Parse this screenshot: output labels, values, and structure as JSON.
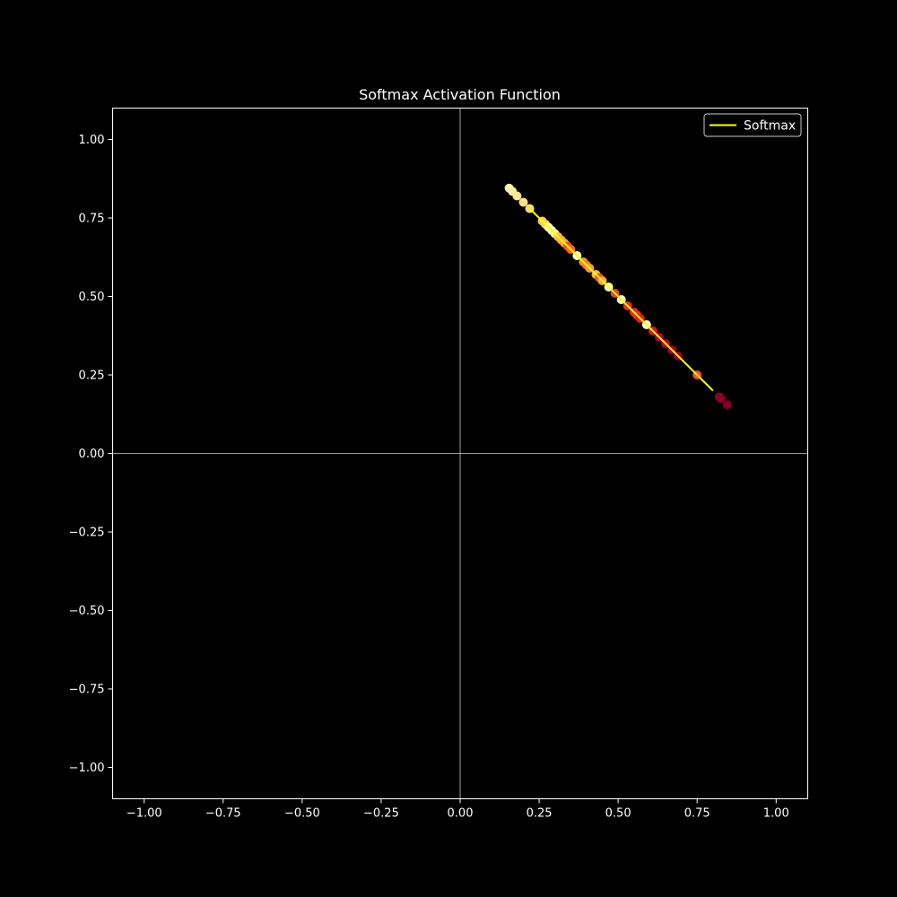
{
  "chart_data": {
    "type": "scatter",
    "title": "Softmax Activation Function",
    "xlabel": "",
    "ylabel": "",
    "xlim": [
      -1.1,
      1.1
    ],
    "ylim": [
      -1.1,
      1.1
    ],
    "x_ticks": [
      -1.0,
      -0.75,
      -0.5,
      -0.25,
      0.0,
      0.25,
      0.5,
      0.75,
      1.0
    ],
    "x_tick_labels": [
      "−1.00",
      "−0.75",
      "−0.50",
      "−0.25",
      "0.00",
      "0.25",
      "0.50",
      "0.75",
      "1.00"
    ],
    "y_ticks": [
      1.0,
      0.75,
      0.5,
      0.25,
      0.0,
      -0.25,
      -0.5,
      -0.75,
      -1.0
    ],
    "y_tick_labels": [
      "1.00",
      "0.75",
      "0.50",
      "0.25",
      "0.00",
      "−0.25",
      "−0.50",
      "−0.75",
      "−1.00"
    ],
    "grid": false,
    "reference_lines": {
      "x": 0,
      "y": 0,
      "color": "#cccccc"
    },
    "legend": {
      "location": "top-right",
      "entries": [
        {
          "label": "Softmax",
          "color": "#ffff00"
        }
      ]
    },
    "colormap": "YlOrRd",
    "line": {
      "name": "Softmax",
      "color": "#ffff00",
      "x": [
        0.22,
        0.8
      ],
      "y": [
        0.78,
        0.2
      ]
    },
    "points": [
      {
        "x": 0.155,
        "y": 0.845,
        "c": 0.05
      },
      {
        "x": 0.165,
        "y": 0.835,
        "c": 0.07
      },
      {
        "x": 0.18,
        "y": 0.82,
        "c": 0.1
      },
      {
        "x": 0.2,
        "y": 0.8,
        "c": 0.12
      },
      {
        "x": 0.22,
        "y": 0.78,
        "c": 0.15
      },
      {
        "x": 0.26,
        "y": 0.74,
        "c": 0.2
      },
      {
        "x": 0.27,
        "y": 0.73,
        "c": 0.18
      },
      {
        "x": 0.28,
        "y": 0.72,
        "c": 0.0
      },
      {
        "x": 0.29,
        "y": 0.71,
        "c": 0.02
      },
      {
        "x": 0.3,
        "y": 0.7,
        "c": 0.05
      },
      {
        "x": 0.31,
        "y": 0.69,
        "c": 0.25
      },
      {
        "x": 0.32,
        "y": 0.68,
        "c": 0.3
      },
      {
        "x": 0.33,
        "y": 0.67,
        "c": 0.35
      },
      {
        "x": 0.34,
        "y": 0.66,
        "c": 0.62
      },
      {
        "x": 0.35,
        "y": 0.65,
        "c": 0.55
      },
      {
        "x": 0.37,
        "y": 0.63,
        "c": 0.0
      },
      {
        "x": 0.39,
        "y": 0.61,
        "c": 0.45
      },
      {
        "x": 0.4,
        "y": 0.6,
        "c": 0.5
      },
      {
        "x": 0.41,
        "y": 0.59,
        "c": 0.4
      },
      {
        "x": 0.43,
        "y": 0.57,
        "c": 0.28
      },
      {
        "x": 0.44,
        "y": 0.56,
        "c": 0.6
      },
      {
        "x": 0.45,
        "y": 0.55,
        "c": 0.35
      },
      {
        "x": 0.47,
        "y": 0.53,
        "c": 0.02
      },
      {
        "x": 0.49,
        "y": 0.51,
        "c": 0.65
      },
      {
        "x": 0.51,
        "y": 0.49,
        "c": 0.02
      },
      {
        "x": 0.53,
        "y": 0.47,
        "c": 0.7
      },
      {
        "x": 0.55,
        "y": 0.45,
        "c": 0.72
      },
      {
        "x": 0.56,
        "y": 0.44,
        "c": 0.68
      },
      {
        "x": 0.57,
        "y": 0.43,
        "c": 0.75
      },
      {
        "x": 0.59,
        "y": 0.41,
        "c": 0.0
      },
      {
        "x": 0.61,
        "y": 0.39,
        "c": 0.78
      },
      {
        "x": 0.63,
        "y": 0.37,
        "c": 0.9
      },
      {
        "x": 0.65,
        "y": 0.35,
        "c": 0.88
      },
      {
        "x": 0.67,
        "y": 0.33,
        "c": 0.92
      },
      {
        "x": 0.69,
        "y": 0.31,
        "c": 0.95
      },
      {
        "x": 0.75,
        "y": 0.25,
        "c": 0.6
      },
      {
        "x": 0.82,
        "y": 0.18,
        "c": 0.97
      },
      {
        "x": 0.825,
        "y": 0.175,
        "c": 0.98
      },
      {
        "x": 0.845,
        "y": 0.155,
        "c": 1.0
      }
    ]
  }
}
